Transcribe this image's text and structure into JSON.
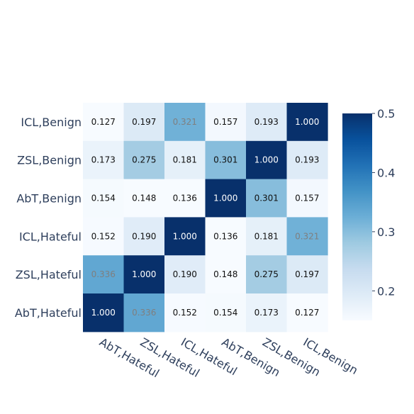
{
  "chart_data": {
    "type": "heatmap",
    "title": "",
    "xlabel": "",
    "ylabel": "",
    "x_categories": [
      "AbT,Hateful",
      "ZSL,Hateful",
      "ICL,Hateful",
      "AbT,Benign",
      "ZSL,Benign",
      "ICL,Benign"
    ],
    "y_categories": [
      "ICL,Benign",
      "ZSL,Benign",
      "AbT,Benign",
      "ICL,Hateful",
      "ZSL,Hateful",
      "AbT,Hateful"
    ],
    "values": [
      [
        0.127,
        0.197,
        0.321,
        0.157,
        0.193,
        1.0
      ],
      [
        0.173,
        0.275,
        0.181,
        0.301,
        1.0,
        0.193
      ],
      [
        0.154,
        0.148,
        0.136,
        1.0,
        0.301,
        0.157
      ],
      [
        0.152,
        0.19,
        1.0,
        0.136,
        0.181,
        0.321
      ],
      [
        0.336,
        1.0,
        0.19,
        0.148,
        0.275,
        0.197
      ],
      [
        1.0,
        0.336,
        0.152,
        0.154,
        0.173,
        0.127
      ]
    ],
    "labels": [
      [
        "0.127",
        "0.197",
        "0.321",
        "0.157",
        "0.193",
        "1.000"
      ],
      [
        "0.173",
        "0.275",
        "0.181",
        "0.301",
        "1.000",
        "0.193"
      ],
      [
        "0.154",
        "0.148",
        "0.136",
        "1.000",
        "0.301",
        "0.157"
      ],
      [
        "0.152",
        "0.190",
        "1.000",
        "0.136",
        "0.181",
        "0.321"
      ],
      [
        "0.336",
        "1.000",
        "0.190",
        "0.148",
        "0.275",
        "0.197"
      ],
      [
        "1.000",
        "0.336",
        "0.152",
        "0.154",
        "0.173",
        "0.127"
      ]
    ],
    "color_range": [
      0.15,
      0.5
    ],
    "colormap": "Blues",
    "colorbar_ticks": [
      0.2,
      0.3,
      0.4,
      0.5
    ],
    "colorbar_tick_labels": [
      "0.2",
      "0.3",
      "0.4",
      "0.5"
    ],
    "x_tick_rotation": "rotated ~30° clockwise",
    "grid": false
  }
}
